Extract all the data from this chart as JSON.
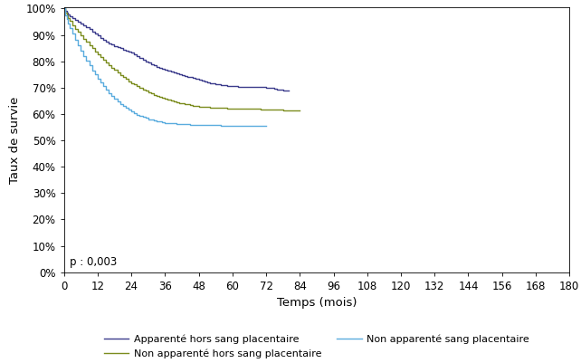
{
  "title": "",
  "xlabel": "Temps (mois)",
  "ylabel": "Taux de survie",
  "pvalue": "p : 0,003",
  "xlim": [
    0,
    180
  ],
  "ylim": [
    0,
    1.005
  ],
  "xticks": [
    0,
    12,
    24,
    36,
    48,
    60,
    72,
    84,
    96,
    108,
    120,
    132,
    144,
    156,
    168,
    180
  ],
  "yticks": [
    0,
    0.1,
    0.2,
    0.3,
    0.4,
    0.5,
    0.6,
    0.7,
    0.8,
    0.9,
    1.0
  ],
  "line1_label": "Apparenté hors sang placentaire",
  "line2_label": "Non apparenté hors sang placentaire",
  "line3_label": "Non apparenté sang placentaire",
  "line1_color": "#3c3c8c",
  "line2_color": "#7b8c1e",
  "line3_color": "#5aacde",
  "line1_x": [
    0,
    0.5,
    1,
    1.5,
    2,
    3,
    4,
    5,
    6,
    7,
    8,
    9,
    10,
    11,
    12,
    13,
    14,
    15,
    16,
    17,
    18,
    19,
    20,
    21,
    22,
    23,
    24,
    25,
    26,
    27,
    28,
    29,
    30,
    31,
    32,
    33,
    34,
    35,
    36,
    37,
    38,
    39,
    40,
    41,
    42,
    43,
    44,
    45,
    46,
    47,
    48,
    49,
    50,
    51,
    52,
    53,
    54,
    55,
    56,
    57,
    58,
    59,
    60,
    61,
    62,
    63,
    64,
    65,
    66,
    67,
    68,
    69,
    70,
    71,
    72,
    73,
    74,
    75,
    76,
    77,
    78,
    79,
    80
  ],
  "line1_y": [
    1.0,
    0.99,
    0.985,
    0.978,
    0.972,
    0.965,
    0.957,
    0.95,
    0.943,
    0.936,
    0.928,
    0.921,
    0.913,
    0.905,
    0.897,
    0.889,
    0.881,
    0.875,
    0.869,
    0.864,
    0.859,
    0.854,
    0.849,
    0.845,
    0.84,
    0.836,
    0.832,
    0.825,
    0.818,
    0.812,
    0.806,
    0.8,
    0.795,
    0.79,
    0.785,
    0.78,
    0.776,
    0.772,
    0.768,
    0.764,
    0.76,
    0.757,
    0.754,
    0.751,
    0.748,
    0.745,
    0.742,
    0.739,
    0.736,
    0.733,
    0.73,
    0.727,
    0.724,
    0.721,
    0.718,
    0.716,
    0.714,
    0.712,
    0.71,
    0.709,
    0.708,
    0.707,
    0.706,
    0.705,
    0.704,
    0.703,
    0.703,
    0.703,
    0.703,
    0.703,
    0.702,
    0.702,
    0.702,
    0.702,
    0.701,
    0.701,
    0.7,
    0.697,
    0.694,
    0.692,
    0.69,
    0.689,
    0.688
  ],
  "line2_x": [
    0,
    0.5,
    1,
    1.5,
    2,
    3,
    4,
    5,
    6,
    7,
    8,
    9,
    10,
    11,
    12,
    13,
    14,
    15,
    16,
    17,
    18,
    19,
    20,
    21,
    22,
    23,
    24,
    25,
    26,
    27,
    28,
    29,
    30,
    31,
    32,
    33,
    34,
    35,
    36,
    37,
    38,
    39,
    40,
    41,
    42,
    43,
    44,
    45,
    46,
    47,
    48,
    49,
    50,
    52,
    54,
    56,
    58,
    60,
    62,
    64,
    66,
    68,
    70,
    72,
    74,
    76,
    78,
    80,
    82,
    84
  ],
  "line2_y": [
    1.0,
    0.985,
    0.975,
    0.963,
    0.952,
    0.938,
    0.924,
    0.911,
    0.898,
    0.885,
    0.873,
    0.861,
    0.849,
    0.838,
    0.827,
    0.816,
    0.806,
    0.796,
    0.786,
    0.776,
    0.767,
    0.758,
    0.749,
    0.741,
    0.733,
    0.725,
    0.718,
    0.712,
    0.706,
    0.7,
    0.694,
    0.688,
    0.683,
    0.678,
    0.673,
    0.669,
    0.665,
    0.661,
    0.657,
    0.654,
    0.651,
    0.648,
    0.645,
    0.642,
    0.64,
    0.638,
    0.636,
    0.634,
    0.632,
    0.63,
    0.629,
    0.628,
    0.627,
    0.625,
    0.624,
    0.623,
    0.622,
    0.621,
    0.62,
    0.62,
    0.619,
    0.619,
    0.618,
    0.618,
    0.617,
    0.616,
    0.615,
    0.614,
    0.613,
    0.613
  ],
  "line3_x": [
    0,
    0.5,
    1,
    1.5,
    2,
    3,
    4,
    5,
    6,
    7,
    8,
    9,
    10,
    11,
    12,
    13,
    14,
    15,
    16,
    17,
    18,
    19,
    20,
    21,
    22,
    23,
    24,
    25,
    26,
    27,
    28,
    29,
    30,
    31,
    32,
    33,
    34,
    35,
    36,
    37,
    38,
    39,
    40,
    41,
    42,
    43,
    44,
    45,
    46,
    47,
    48,
    50,
    52,
    54,
    56,
    58,
    60,
    62,
    64,
    66,
    68,
    70,
    72
  ],
  "line3_y": [
    1.0,
    0.975,
    0.96,
    0.943,
    0.926,
    0.904,
    0.882,
    0.861,
    0.84,
    0.821,
    0.802,
    0.784,
    0.766,
    0.75,
    0.734,
    0.719,
    0.705,
    0.692,
    0.68,
    0.669,
    0.658,
    0.648,
    0.639,
    0.631,
    0.623,
    0.616,
    0.609,
    0.603,
    0.598,
    0.593,
    0.589,
    0.585,
    0.581,
    0.578,
    0.575,
    0.573,
    0.571,
    0.569,
    0.567,
    0.566,
    0.565,
    0.564,
    0.563,
    0.562,
    0.562,
    0.561,
    0.561,
    0.56,
    0.56,
    0.559,
    0.559,
    0.558,
    0.558,
    0.558,
    0.557,
    0.557,
    0.557,
    0.556,
    0.556,
    0.556,
    0.556,
    0.556,
    0.556
  ],
  "background_color": "#ffffff",
  "font_size": 8.5,
  "legend_fontsize": 8
}
